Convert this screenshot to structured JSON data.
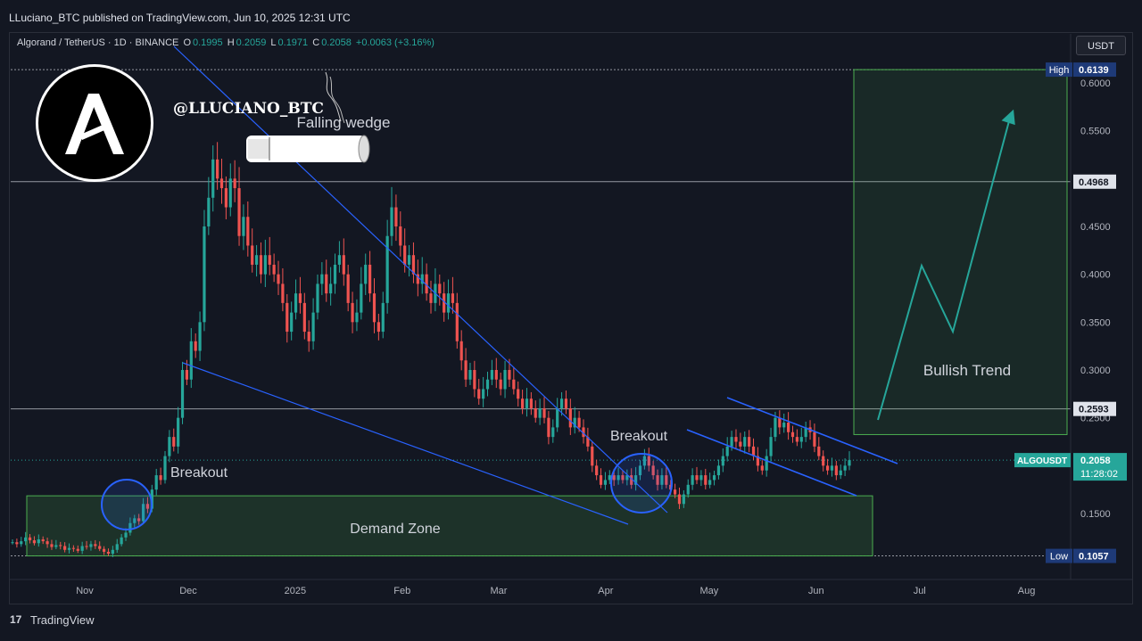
{
  "header": {
    "published": "LLuciano_BTC published on TradingView.com, Jun 10, 2025 12:31 UTC"
  },
  "legend": {
    "symbol": "Algorand / TetherUS · 1D · BINANCE",
    "open_key": "O",
    "open": "0.1995",
    "high_key": "H",
    "high": "0.2059",
    "low_key": "L",
    "low": "0.1971",
    "close_key": "C",
    "close": "0.2058",
    "change": "+0.0063 (+3.16%)"
  },
  "currency_button": "USDT",
  "watermark": {
    "handle": "@LLUCIANO_BTC"
  },
  "footer": {
    "brand": "TradingView",
    "logo_glyph": "17"
  },
  "colors": {
    "up": "#26a69a",
    "down": "#ef5350",
    "background": "#131722",
    "annotation_blue": "#2962ff",
    "zone_green": "#4caf50"
  },
  "chart_data": {
    "type": "candlestick",
    "symbol": "ALGOUSDT",
    "y_ticks": [
      "0.6000",
      "0.5500",
      "0.4500",
      "0.4000",
      "0.3500",
      "0.3000",
      "0.2500",
      "0.1500"
    ],
    "ylim": [
      0.095,
      0.665
    ],
    "x_ticks": [
      {
        "label": "Nov",
        "date": "2024-11-01"
      },
      {
        "label": "Dec",
        "date": "2024-12-01"
      },
      {
        "label": "2025",
        "date": "2025-01-01"
      },
      {
        "label": "Feb",
        "date": "2025-02-01"
      },
      {
        "label": "Mar",
        "date": "2025-03-01"
      },
      {
        "label": "Apr",
        "date": "2025-04-01"
      },
      {
        "label": "May",
        "date": "2025-05-01"
      },
      {
        "label": "Jun",
        "date": "2025-06-01"
      },
      {
        "label": "Jul",
        "date": "2025-07-01"
      },
      {
        "label": "Aug",
        "date": "2025-08-01"
      }
    ],
    "price_markers": [
      {
        "label": "High",
        "value": "0.6139",
        "price": 0.6139
      },
      {
        "label": "",
        "value": "0.4968",
        "price": 0.4968
      },
      {
        "label": "",
        "value": "0.2593",
        "price": 0.2593
      },
      {
        "label": "ALGOUSDT",
        "value": "0.2058",
        "sub": "11:28:02",
        "price": 0.2058
      },
      {
        "label": "Low",
        "value": "0.1057",
        "price": 0.1057
      }
    ],
    "candles_close": [
      0.12,
      0.118,
      0.121,
      0.125,
      0.122,
      0.119,
      0.123,
      0.121,
      0.118,
      0.115,
      0.117,
      0.116,
      0.112,
      0.114,
      0.113,
      0.111,
      0.116,
      0.115,
      0.118,
      0.116,
      0.113,
      0.11,
      0.108,
      0.112,
      0.118,
      0.125,
      0.13,
      0.14,
      0.145,
      0.142,
      0.16,
      0.155,
      0.175,
      0.19,
      0.185,
      0.21,
      0.23,
      0.22,
      0.25,
      0.3,
      0.29,
      0.33,
      0.32,
      0.35,
      0.45,
      0.48,
      0.52,
      0.5,
      0.49,
      0.47,
      0.5,
      0.49,
      0.44,
      0.46,
      0.43,
      0.41,
      0.42,
      0.4,
      0.42,
      0.41,
      0.4,
      0.39,
      0.37,
      0.34,
      0.36,
      0.38,
      0.37,
      0.34,
      0.33,
      0.36,
      0.39,
      0.4,
      0.38,
      0.39,
      0.41,
      0.42,
      0.4,
      0.37,
      0.35,
      0.36,
      0.39,
      0.41,
      0.38,
      0.35,
      0.34,
      0.37,
      0.44,
      0.47,
      0.45,
      0.43,
      0.41,
      0.42,
      0.4,
      0.39,
      0.4,
      0.38,
      0.37,
      0.39,
      0.38,
      0.36,
      0.38,
      0.37,
      0.33,
      0.31,
      0.29,
      0.3,
      0.28,
      0.27,
      0.28,
      0.29,
      0.3,
      0.29,
      0.28,
      0.3,
      0.29,
      0.28,
      0.27,
      0.26,
      0.27,
      0.26,
      0.25,
      0.26,
      0.25,
      0.23,
      0.24,
      0.26,
      0.27,
      0.26,
      0.24,
      0.25,
      0.24,
      0.23,
      0.22,
      0.2,
      0.19,
      0.18,
      0.185,
      0.19,
      0.185,
      0.19,
      0.185,
      0.19,
      0.18,
      0.19,
      0.2,
      0.21,
      0.2,
      0.19,
      0.18,
      0.19,
      0.18,
      0.175,
      0.17,
      0.16,
      0.17,
      0.18,
      0.19,
      0.185,
      0.19,
      0.18,
      0.185,
      0.19,
      0.2,
      0.21,
      0.22,
      0.23,
      0.225,
      0.22,
      0.23,
      0.22,
      0.21,
      0.2,
      0.195,
      0.21,
      0.23,
      0.25,
      0.24,
      0.245,
      0.235,
      0.23,
      0.225,
      0.23,
      0.24,
      0.235,
      0.22,
      0.21,
      0.2,
      0.195,
      0.2,
      0.19,
      0.195,
      0.2,
      0.2058
    ],
    "annotations": {
      "texts": [
        "Falling wedge",
        "Breakout",
        "Breakout",
        "Demand Zone",
        "Bullish Trend"
      ]
    }
  }
}
